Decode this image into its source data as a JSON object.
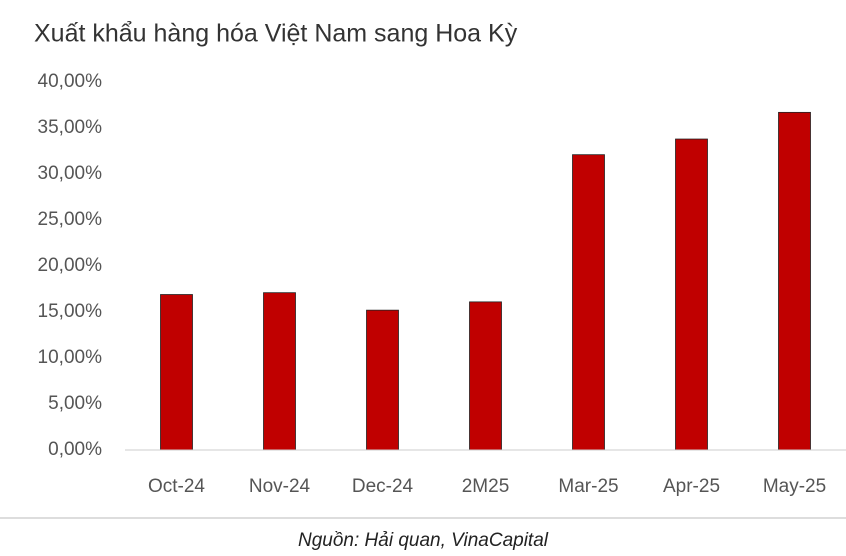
{
  "chart_data": {
    "type": "bar",
    "title": "Xuất khẩu hàng hóa Việt Nam sang Hoa Kỳ",
    "source": "Nguồn: Hải quan, VinaCapital",
    "categories": [
      "Oct-24",
      "Nov-24",
      "Dec-24",
      "2M25",
      "Mar-25",
      "Apr-25",
      "May-25"
    ],
    "values": [
      16.9,
      17.1,
      15.2,
      16.1,
      32.1,
      33.8,
      36.7
    ],
    "color": "#c00000",
    "ylim": [
      0,
      40
    ],
    "yticks": [
      {
        "value": 0,
        "label": "0,00%"
      },
      {
        "value": 5,
        "label": "5,00%"
      },
      {
        "value": 10,
        "label": "10,00%"
      },
      {
        "value": 15,
        "label": "15,00%"
      },
      {
        "value": 20,
        "label": "20,00%"
      },
      {
        "value": 25,
        "label": "25,00%"
      },
      {
        "value": 30,
        "label": "30,00%"
      },
      {
        "value": 35,
        "label": "35,00%"
      },
      {
        "value": 40,
        "label": "40,00%"
      }
    ],
    "grid": false
  }
}
